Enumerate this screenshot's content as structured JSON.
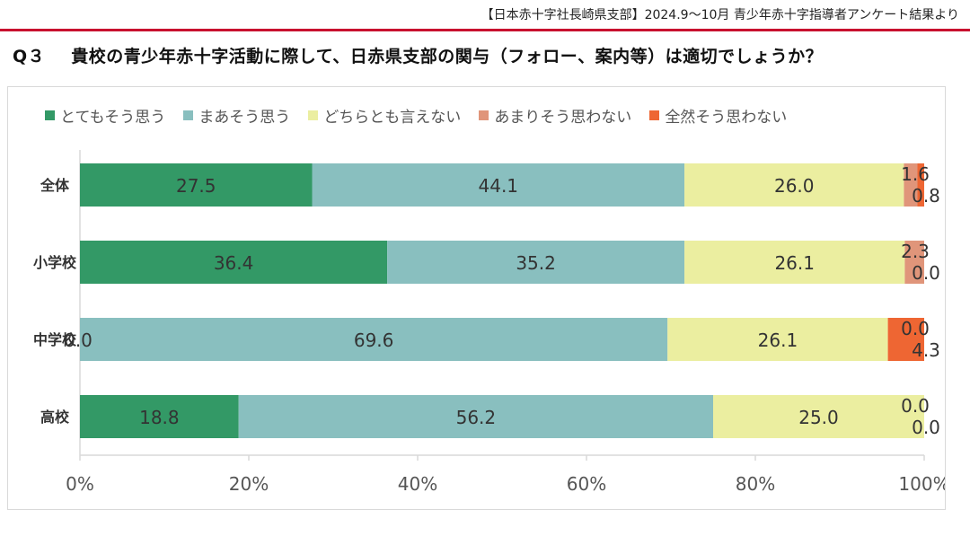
{
  "source": "【日本赤十字社長崎県支部】2024.9〜10月 青少年赤十字指導者アンケート結果より",
  "question": {
    "number": "Q３",
    "text": "貴校の青少年赤十字活動に際して、日赤県支部の関与（フォロー、案内等）は適切でしょうか？"
  },
  "colors": {
    "series": [
      "#339966",
      "#89bfbf",
      "#ebeea0",
      "#e0957a",
      "#ee6633"
    ],
    "axis": "#d9d9d9",
    "title_rule": "#c8102e"
  },
  "chart_data": {
    "type": "bar",
    "orientation": "horizontal",
    "stacked": true,
    "title": "",
    "xlabel": "",
    "ylabel": "",
    "xlim": [
      0,
      100
    ],
    "xticks": [
      "0%",
      "20%",
      "40%",
      "60%",
      "80%",
      "100%"
    ],
    "legend_position": "top",
    "categories": [
      "全体",
      "小学校",
      "中学校",
      "高校"
    ],
    "series": [
      {
        "name": "とてもそう思う",
        "values": [
          27.5,
          36.4,
          0.0,
          18.8
        ],
        "labels": [
          "27.5",
          "36.4",
          "0.0",
          "18.8"
        ]
      },
      {
        "name": "まあそう思う",
        "values": [
          44.1,
          35.2,
          69.6,
          56.2
        ],
        "labels": [
          "44.1",
          "35.2",
          "69.6",
          "56.2"
        ]
      },
      {
        "name": "どちらとも言えない",
        "values": [
          26.0,
          26.1,
          26.1,
          25.0
        ],
        "labels": [
          "26.0",
          "26.1",
          "26.1",
          "25.0"
        ]
      },
      {
        "name": "あまりそう思わない",
        "values": [
          1.6,
          2.3,
          0.0,
          0.0
        ],
        "labels": [
          "1.6",
          "2.3",
          "0.0",
          "0.0"
        ]
      },
      {
        "name": "全然そう思わない",
        "values": [
          0.8,
          0.0,
          4.3,
          0.0
        ],
        "labels": [
          "0.8",
          "0.0",
          "4.3",
          "0.0"
        ]
      }
    ]
  }
}
